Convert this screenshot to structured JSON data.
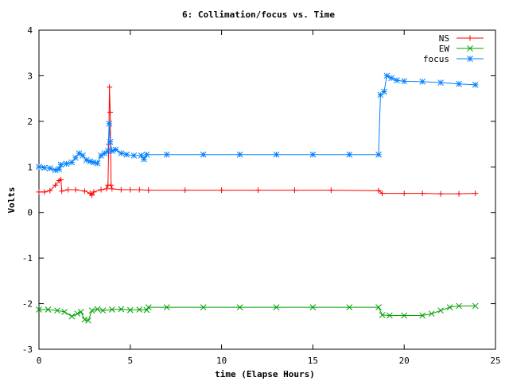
{
  "chart_data": {
    "type": "line",
    "title": "6: Collimation/focus vs. Time",
    "xlabel": "time (Elapse Hours)",
    "ylabel": "Volts",
    "xlim": [
      0,
      25
    ],
    "ylim": [
      -3,
      4
    ],
    "xticks": [
      "0",
      "5",
      "10",
      "15",
      "20",
      "25"
    ],
    "yticks": [
      "-3",
      "-2",
      "-1",
      "0",
      "1",
      "2",
      "3",
      "4"
    ],
    "xtick_values": [
      0,
      5,
      10,
      15,
      20,
      25
    ],
    "ytick_values": [
      -3,
      -2,
      -1,
      0,
      1,
      2,
      3,
      4
    ],
    "grid": false,
    "legend_position": "top-right",
    "series": [
      {
        "name": "NS",
        "color": "#ff0000",
        "marker": "plus",
        "points": [
          [
            0.0,
            0.45
          ],
          [
            0.3,
            0.45
          ],
          [
            0.6,
            0.48
          ],
          [
            0.9,
            0.6
          ],
          [
            1.1,
            0.7
          ],
          [
            1.2,
            0.72
          ],
          [
            1.25,
            0.47
          ],
          [
            1.6,
            0.5
          ],
          [
            2.0,
            0.5
          ],
          [
            2.5,
            0.47
          ],
          [
            2.8,
            0.42
          ],
          [
            2.9,
            0.38
          ],
          [
            3.0,
            0.45
          ],
          [
            3.4,
            0.5
          ],
          [
            3.7,
            0.52
          ],
          [
            3.78,
            0.6
          ],
          [
            3.82,
            1.5
          ],
          [
            3.86,
            2.75
          ],
          [
            3.9,
            2.2
          ],
          [
            3.95,
            0.6
          ],
          [
            4.0,
            0.52
          ],
          [
            4.5,
            0.5
          ],
          [
            5.0,
            0.5
          ],
          [
            5.5,
            0.5
          ],
          [
            6.0,
            0.49
          ],
          [
            8.0,
            0.49
          ],
          [
            10.0,
            0.49
          ],
          [
            12.0,
            0.49
          ],
          [
            14.0,
            0.49
          ],
          [
            16.0,
            0.49
          ],
          [
            18.6,
            0.48
          ],
          [
            18.8,
            0.42
          ],
          [
            20.0,
            0.42
          ],
          [
            21.0,
            0.42
          ],
          [
            22.0,
            0.41
          ],
          [
            23.0,
            0.41
          ],
          [
            23.9,
            0.42
          ]
        ]
      },
      {
        "name": "EW",
        "color": "#00a000",
        "marker": "cross",
        "points": [
          [
            0.0,
            -2.13
          ],
          [
            0.5,
            -2.13
          ],
          [
            1.0,
            -2.15
          ],
          [
            1.4,
            -2.18
          ],
          [
            1.8,
            -2.28
          ],
          [
            2.1,
            -2.22
          ],
          [
            2.3,
            -2.18
          ],
          [
            2.5,
            -2.35
          ],
          [
            2.7,
            -2.37
          ],
          [
            2.9,
            -2.15
          ],
          [
            3.2,
            -2.12
          ],
          [
            3.5,
            -2.15
          ],
          [
            4.0,
            -2.13
          ],
          [
            4.5,
            -2.12
          ],
          [
            5.0,
            -2.14
          ],
          [
            5.5,
            -2.13
          ],
          [
            5.9,
            -2.14
          ],
          [
            6.0,
            -2.08
          ],
          [
            7.0,
            -2.08
          ],
          [
            9.0,
            -2.08
          ],
          [
            11.0,
            -2.08
          ],
          [
            13.0,
            -2.08
          ],
          [
            15.0,
            -2.08
          ],
          [
            17.0,
            -2.08
          ],
          [
            18.6,
            -2.08
          ],
          [
            18.8,
            -2.25
          ],
          [
            19.2,
            -2.26
          ],
          [
            20.0,
            -2.26
          ],
          [
            21.0,
            -2.26
          ],
          [
            21.5,
            -2.22
          ],
          [
            22.0,
            -2.15
          ],
          [
            22.5,
            -2.08
          ],
          [
            23.0,
            -2.05
          ],
          [
            23.9,
            -2.05
          ]
        ]
      },
      {
        "name": "focus",
        "color": "#0080ff",
        "marker": "star",
        "points": [
          [
            0.0,
            1.0
          ],
          [
            0.3,
            0.98
          ],
          [
            0.6,
            0.97
          ],
          [
            0.9,
            0.93
          ],
          [
            1.1,
            0.95
          ],
          [
            1.2,
            1.05
          ],
          [
            1.5,
            1.07
          ],
          [
            1.8,
            1.1
          ],
          [
            2.0,
            1.2
          ],
          [
            2.2,
            1.3
          ],
          [
            2.4,
            1.25
          ],
          [
            2.6,
            1.15
          ],
          [
            2.8,
            1.12
          ],
          [
            3.0,
            1.1
          ],
          [
            3.2,
            1.08
          ],
          [
            3.4,
            1.25
          ],
          [
            3.6,
            1.3
          ],
          [
            3.78,
            1.35
          ],
          [
            3.85,
            1.95
          ],
          [
            3.9,
            1.55
          ],
          [
            4.0,
            1.35
          ],
          [
            4.2,
            1.38
          ],
          [
            4.5,
            1.3
          ],
          [
            4.8,
            1.27
          ],
          [
            5.2,
            1.25
          ],
          [
            5.6,
            1.25
          ],
          [
            5.75,
            1.17
          ],
          [
            5.9,
            1.27
          ],
          [
            7.0,
            1.27
          ],
          [
            9.0,
            1.27
          ],
          [
            11.0,
            1.27
          ],
          [
            13.0,
            1.27
          ],
          [
            15.0,
            1.27
          ],
          [
            17.0,
            1.27
          ],
          [
            18.6,
            1.27
          ],
          [
            18.7,
            2.58
          ],
          [
            18.9,
            2.65
          ],
          [
            19.05,
            3.0
          ],
          [
            19.3,
            2.95
          ],
          [
            19.6,
            2.9
          ],
          [
            20.0,
            2.88
          ],
          [
            21.0,
            2.87
          ],
          [
            22.0,
            2.85
          ],
          [
            23.0,
            2.82
          ],
          [
            23.9,
            2.8
          ]
        ]
      }
    ]
  }
}
